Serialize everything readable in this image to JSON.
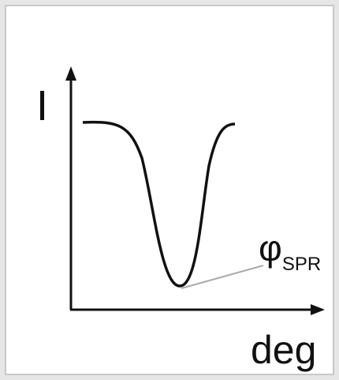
{
  "axes": {
    "y_label": "I",
    "x_label": "deg"
  },
  "annotation": {
    "symbol": "φ",
    "subscript": "SPR"
  }
}
